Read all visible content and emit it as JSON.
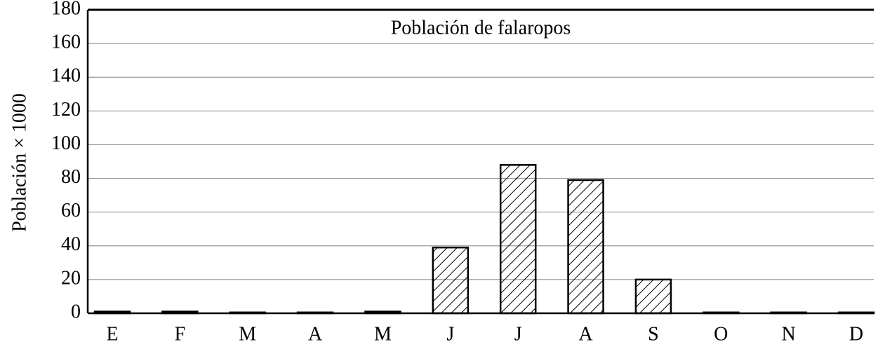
{
  "chart_data": {
    "type": "bar",
    "title": "Población de falaropos",
    "y_label": "Población × 1000",
    "categories": [
      "E",
      "F",
      "M",
      "A",
      "M",
      "J",
      "J",
      "A",
      "S",
      "O",
      "N",
      "D"
    ],
    "values": [
      1,
      1,
      0.5,
      0.5,
      1,
      39,
      88,
      79,
      20,
      0.5,
      0.5,
      0.5
    ],
    "color": "#000000",
    "hatch": true,
    "ylim": [
      0,
      180
    ],
    "yticks": [
      0,
      20,
      40,
      60,
      80,
      100,
      120,
      140,
      160,
      180
    ],
    "grid": true
  }
}
